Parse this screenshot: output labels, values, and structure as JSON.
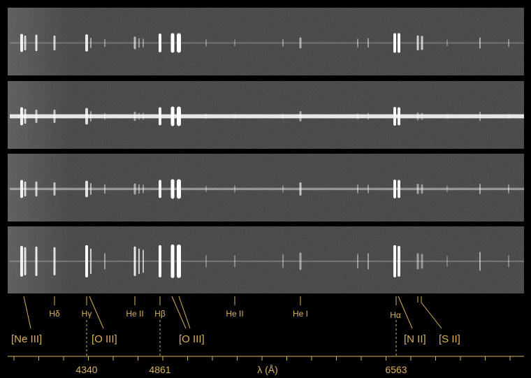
{
  "figure": {
    "panels": [
      {
        "name": "spectrum-1",
        "continuum": 0.05
      },
      {
        "name": "spectrum-2",
        "continuum": 0.95
      },
      {
        "name": "spectrum-3",
        "continuum": 0.35
      },
      {
        "name": "spectrum-4",
        "continuum": 0.08
      }
    ],
    "colors": {
      "background": "#000000",
      "panel": "#3a3a3a",
      "annotation": "#d9b15a"
    },
    "lines_angstrom": [
      3869,
      3968,
      4102,
      4340,
      4363,
      4686,
      4861,
      4959,
      5007,
      5876,
      6548,
      6563,
      6584,
      6717,
      6731
    ],
    "labels": {
      "ne3": "[Ne III]",
      "hdelta": "Hδ",
      "hgamma": "Hγ",
      "o3a": "[O III]",
      "he2a": "He II",
      "hbeta": "Hβ",
      "o3b": "[O III]",
      "he2b": "He II",
      "he1": "He I",
      "halpha": "Hα",
      "n2": "[N II]",
      "s2": "[S II]"
    },
    "axis": {
      "label": "λ (Å)",
      "ticks": [
        "4340",
        "4861",
        "6563"
      ]
    }
  }
}
